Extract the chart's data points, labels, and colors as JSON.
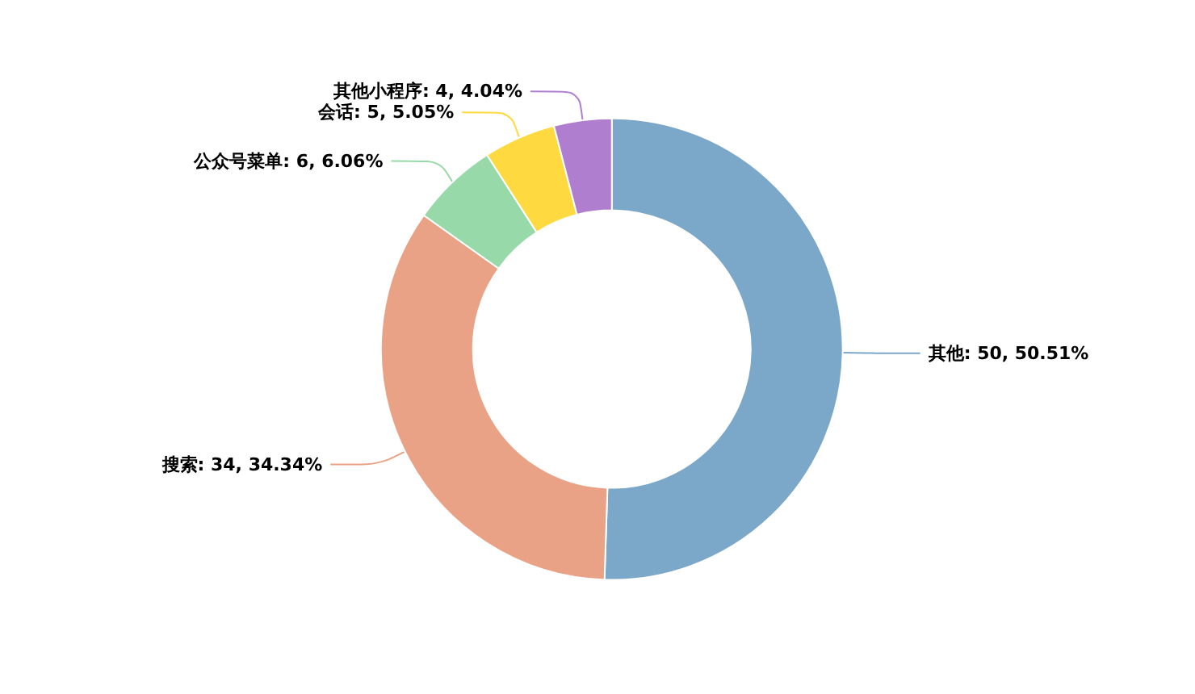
{
  "chart_data": {
    "type": "donut",
    "categories": [
      "其他",
      "搜索",
      "公众号菜单",
      "会话",
      "其他小程序"
    ],
    "values": [
      50,
      34,
      6,
      5,
      4
    ],
    "colors": [
      "#7ba7c9",
      "#eaa286",
      "#97d9a9",
      "#fed93f",
      "#b07ecf"
    ],
    "value_labels": [
      "50, 50.51%",
      "34, 34.34%",
      "6, 6.06%",
      "5, 5.05%",
      "4, 4.04%"
    ],
    "legend": false
  }
}
